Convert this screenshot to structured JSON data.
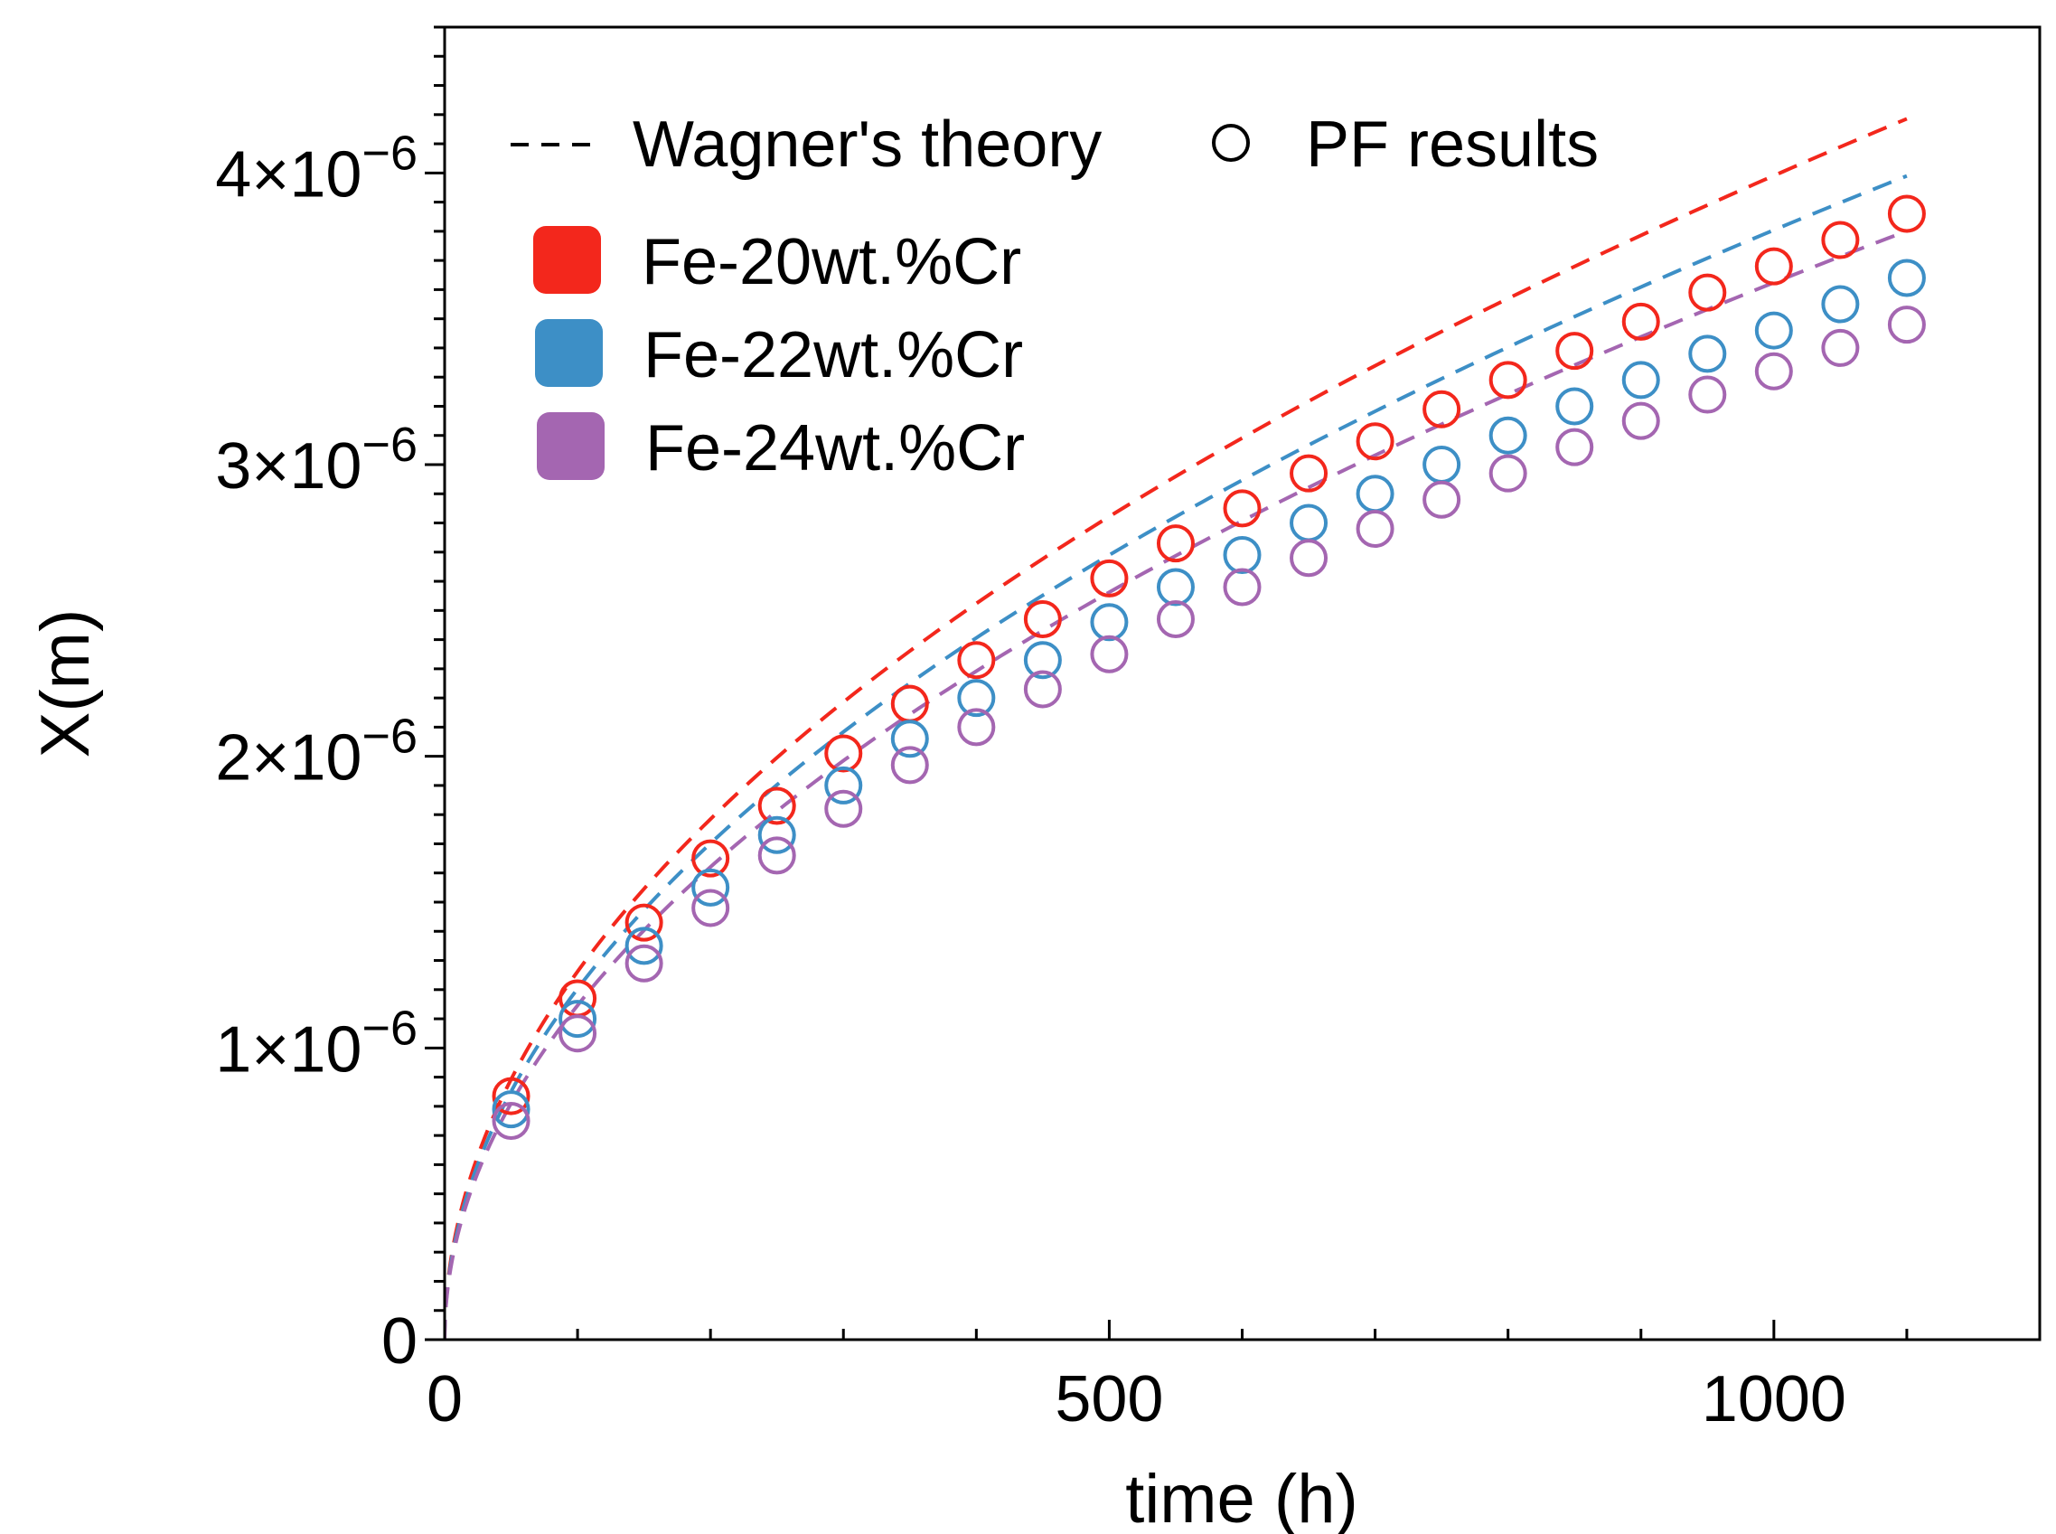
{
  "chart_data": {
    "type": "line",
    "title": "",
    "xlabel": "time (h)",
    "ylabel": "X(m)",
    "xlim": [
      0,
      1200
    ],
    "ylim": [
      0,
      4.5e-06
    ],
    "grid": false,
    "x_ticks": [
      {
        "value": 0,
        "label": "0"
      },
      {
        "value": 500,
        "label": "500"
      },
      {
        "value": 1000,
        "label": "1000"
      }
    ],
    "y_ticks": [
      {
        "value": 0,
        "base": "0",
        "exp": ""
      },
      {
        "value": 1e-06,
        "base": "1×10",
        "exp": "−6"
      },
      {
        "value": 2e-06,
        "base": "2×10",
        "exp": "−6"
      },
      {
        "value": 3e-06,
        "base": "3×10",
        "exp": "−6"
      },
      {
        "value": 4e-06,
        "base": "4×10",
        "exp": "−6"
      }
    ],
    "legend": {
      "placement": "top-left",
      "style_entries": [
        "Wagner's theory",
        "PF results"
      ],
      "color_entries": [
        "Fe-20wt.%Cr",
        "Fe-22wt.%Cr",
        "Fe-24wt.%Cr"
      ]
    },
    "theory_x_max": 1100,
    "series": [
      {
        "name": "Fe-20wt.%Cr",
        "color": "#f3271c",
        "theory_k": 1.262e-07,
        "pf_x": [
          50,
          100,
          150,
          200,
          250,
          300,
          350,
          400,
          450,
          500,
          550,
          600,
          650,
          700,
          750,
          800,
          850,
          900,
          950,
          1000,
          1050,
          1100
        ],
        "pf_y": [
          8.35e-07,
          1.17e-06,
          1.43e-06,
          1.65e-06,
          1.83e-06,
          2.01e-06,
          2.18e-06,
          2.33e-06,
          2.47e-06,
          2.61e-06,
          2.73e-06,
          2.85e-06,
          2.97e-06,
          3.08e-06,
          3.19e-06,
          3.29e-06,
          3.39e-06,
          3.49e-06,
          3.59e-06,
          3.68e-06,
          3.77e-06,
          3.86e-06
        ]
      },
      {
        "name": "Fe-22wt.%Cr",
        "color": "#3d8fc6",
        "theory_k": 1.203e-07,
        "pf_x": [
          50,
          100,
          150,
          200,
          250,
          300,
          350,
          400,
          450,
          500,
          550,
          600,
          650,
          700,
          750,
          800,
          850,
          900,
          950,
          1000,
          1050,
          1100
        ],
        "pf_y": [
          7.9e-07,
          1.1e-06,
          1.35e-06,
          1.55e-06,
          1.73e-06,
          1.9e-06,
          2.06e-06,
          2.2e-06,
          2.33e-06,
          2.46e-06,
          2.58e-06,
          2.69e-06,
          2.8e-06,
          2.9e-06,
          3e-06,
          3.1e-06,
          3.2e-06,
          3.29e-06,
          3.38e-06,
          3.46e-06,
          3.55e-06,
          3.64e-06
        ]
      },
      {
        "name": "Fe-24wt.%Cr",
        "color": "#a466b1",
        "theory_k": 1.146e-07,
        "pf_x": [
          50,
          100,
          150,
          200,
          250,
          300,
          350,
          400,
          450,
          500,
          550,
          600,
          650,
          700,
          750,
          800,
          850,
          900,
          950,
          1000,
          1050,
          1100
        ],
        "pf_y": [
          7.5e-07,
          1.05e-06,
          1.29e-06,
          1.48e-06,
          1.66e-06,
          1.82e-06,
          1.97e-06,
          2.1e-06,
          2.23e-06,
          2.35e-06,
          2.47e-06,
          2.58e-06,
          2.68e-06,
          2.78e-06,
          2.88e-06,
          2.97e-06,
          3.06e-06,
          3.15e-06,
          3.24e-06,
          3.32e-06,
          3.4e-06,
          3.48e-06
        ]
      }
    ]
  }
}
